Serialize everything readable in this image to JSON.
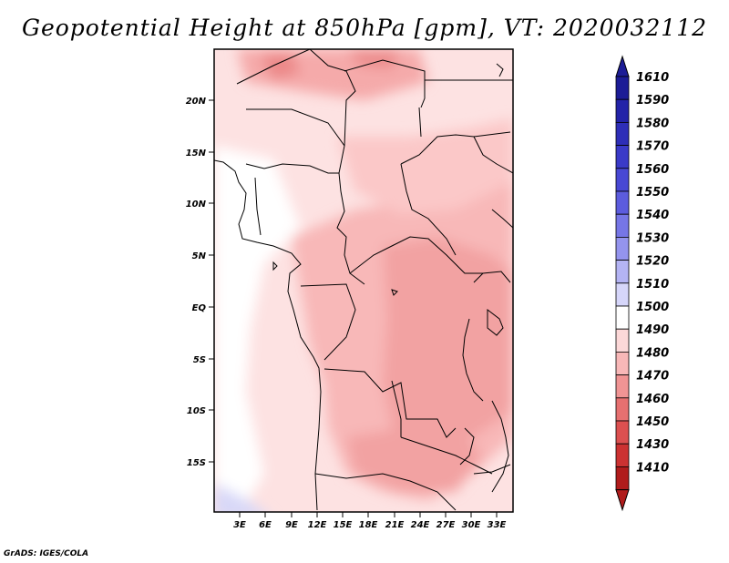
{
  "title": "Geopotential Height at 850hPa [gpm], VT: 2020032112",
  "credit": "GrADS: IGES/COLA",
  "map": {
    "lat_labels": [
      "20N",
      "15N",
      "10N",
      "5N",
      "EQ",
      "5S",
      "10S",
      "15S"
    ],
    "lon_labels": [
      "3E",
      "6E",
      "9E",
      "12E",
      "15E",
      "18E",
      "21E",
      "24E",
      "27E",
      "30E",
      "33E"
    ]
  },
  "colorbar": {
    "levels": [
      "1610",
      "1590",
      "1580",
      "1570",
      "1560",
      "1550",
      "1540",
      "1530",
      "1520",
      "1510",
      "1500",
      "1490",
      "1480",
      "1470",
      "1460",
      "1450",
      "1430",
      "1410"
    ],
    "colors": [
      "#1c1c96",
      "#2323a8",
      "#2e2eb8",
      "#3a3ac8",
      "#4848d4",
      "#5c5cde",
      "#7676e6",
      "#9494ee",
      "#b4b4f4",
      "#d6d6fa",
      "#ffffff",
      "#fcd8d8",
      "#f8b8b8",
      "#f09494",
      "#e67070",
      "#dc5050",
      "#cc3232",
      "#b01c1c"
    ]
  }
}
